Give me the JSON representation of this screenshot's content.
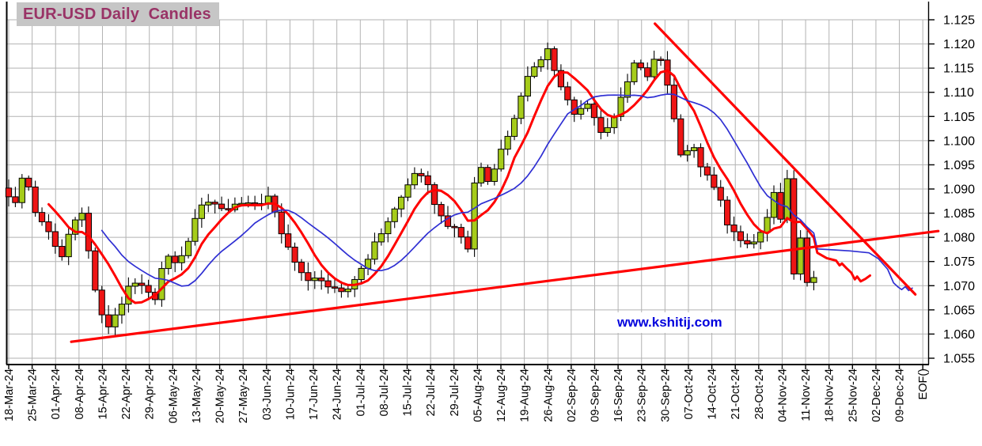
{
  "header": {
    "title": "EUR-USD Daily  Candles"
  },
  "watermark": {
    "text": "www.kshitij.com"
  },
  "colors": {
    "background": "#ffffff",
    "grid": "#b2b2b2",
    "axis": "#000000",
    "label_text": "#000000",
    "title_text": "#993366",
    "title_bg": "#c6c6c6",
    "watermark_text": "#0000dd",
    "candle_up": "#a6cc1a",
    "candle_down": "#ee1515",
    "ma_fast": "#ff0000",
    "ma_slow": "#2f2fd3",
    "trendline": "#ff0000"
  },
  "chart_data": {
    "type": "candlestick",
    "title": "EUR-USD Daily Candles",
    "instrument": "EUR-USD",
    "grid": true,
    "ylim": [
      1.055,
      1.125
    ],
    "y_step": 0.005,
    "y_tick_labels": [
      "1.125",
      "1.120",
      "1.115",
      "1.110",
      "1.105",
      "1.100",
      "1.095",
      "1.090",
      "1.085",
      "1.080",
      "1.075",
      "1.070",
      "1.065",
      "1.060",
      "1.055"
    ],
    "x_tick_labels": [
      "18-Mar-24",
      "25-Mar-24",
      "01-Apr-24",
      "08-Apr-24",
      "15-Apr-24",
      "22-Apr-24",
      "29-Apr-24",
      "06-May-24",
      "13-May-24",
      "20-May-24",
      "27-May-24",
      "03-Jun-24",
      "10-Jun-24",
      "17-Jun-24",
      "24-Jun-24",
      "01-Jul-24",
      "08-Jul-24",
      "15-Jul-24",
      "22-Jul-24",
      "29-Jul-24",
      "05-Aug-24",
      "12-Aug-24",
      "19-Aug-24",
      "26-Aug-24",
      "02-Sep-24",
      "09-Sep-24",
      "16-Sep-24",
      "23-Sep-24",
      "30-Sep-24",
      "07-Oct-24",
      "14-Oct-24",
      "21-Oct-24",
      "28-Oct-24",
      "04-Nov-24",
      "11-Nov-24",
      "18-Nov-24",
      "25-Nov-24",
      "02-Dec-24",
      "09-Dec-24",
      "EOF()"
    ],
    "num_candles": 122,
    "weeks_span": 34.35,
    "price_path_anchors": [
      [
        0,
        1.0888
      ],
      [
        0.28,
        1.0868
      ],
      [
        0.57,
        1.0922
      ],
      [
        0.85,
        1.0905
      ],
      [
        1.2,
        1.0843
      ],
      [
        1.9,
        1.0795
      ],
      [
        2.2,
        1.0748
      ],
      [
        2.75,
        1.0838
      ],
      [
        3.1,
        1.0855
      ],
      [
        3.5,
        1.0745
      ],
      [
        3.85,
        1.0648
      ],
      [
        4.2,
        1.0612
      ],
      [
        4.75,
        1.0658
      ],
      [
        5.25,
        1.0706
      ],
      [
        5.75,
        1.0694
      ],
      [
        6.2,
        1.0668
      ],
      [
        6.65,
        1.0758
      ],
      [
        7.3,
        1.0748
      ],
      [
        8.3,
        1.088
      ],
      [
        9.3,
        1.0856
      ],
      [
        9.9,
        1.0876
      ],
      [
        10.6,
        1.0862
      ],
      [
        11.1,
        1.089
      ],
      [
        11.65,
        1.0801
      ],
      [
        12.35,
        1.0742
      ],
      [
        12.7,
        1.0705
      ],
      [
        13.3,
        1.0718
      ],
      [
        13.7,
        1.0694
      ],
      [
        14.3,
        1.068
      ],
      [
        15.1,
        1.074
      ],
      [
        16.1,
        1.0828
      ],
      [
        16.6,
        1.0868
      ],
      [
        17.35,
        1.0938
      ],
      [
        17.9,
        1.0902
      ],
      [
        18.45,
        1.0842
      ],
      [
        19.31,
        1.08
      ],
      [
        19.59,
        1.0777
      ],
      [
        19.87,
        1.0911
      ],
      [
        20.15,
        1.0946
      ],
      [
        20.43,
        1.0915
      ],
      [
        21.3,
        1.1012
      ],
      [
        22.3,
        1.1148
      ],
      [
        23.0,
        1.119
      ],
      [
        23.45,
        1.112
      ],
      [
        24.2,
        1.1046
      ],
      [
        24.65,
        1.1086
      ],
      [
        25.3,
        1.1012
      ],
      [
        25.9,
        1.1058
      ],
      [
        26.35,
        1.1112
      ],
      [
        26.65,
        1.116
      ],
      [
        27.3,
        1.1132
      ],
      [
        27.7,
        1.1186
      ],
      [
        28.05,
        1.1132
      ],
      [
        28.65,
        1.0976
      ],
      [
        29.2,
        1.0985
      ],
      [
        29.65,
        1.0936
      ],
      [
        30.3,
        1.0885
      ],
      [
        30.65,
        1.0832
      ],
      [
        31.3,
        1.0782
      ],
      [
        31.8,
        1.079
      ],
      [
        32.25,
        1.082
      ],
      [
        32.64,
        1.0888
      ],
      [
        32.93,
        1.0836
      ],
      [
        33.21,
        1.0926
      ],
      [
        33.5,
        1.0722
      ],
      [
        33.78,
        1.0798
      ],
      [
        34.07,
        1.0706
      ],
      [
        34.35,
        1.0718
      ]
    ],
    "moving_averages": [
      {
        "name": "fast-red-ma",
        "period": 7,
        "color": "#ff0000",
        "width": 3,
        "extension": [
          [
            34.5,
            1.0768
          ],
          [
            34.9,
            1.0757
          ],
          [
            35.3,
            1.0752
          ],
          [
            35.45,
            1.0742
          ],
          [
            35.55,
            1.0746
          ],
          [
            35.75,
            1.0736
          ],
          [
            35.95,
            1.0727
          ],
          [
            36.1,
            1.0713
          ],
          [
            36.2,
            1.0719
          ],
          [
            36.35,
            1.0709
          ],
          [
            36.55,
            1.0714
          ],
          [
            36.75,
            1.0721
          ]
        ]
      },
      {
        "name": "slow-blue-ma",
        "period": 15,
        "color": "#2f2fd3",
        "width": 1.7,
        "extension": [
          [
            34.5,
            1.0776
          ],
          [
            35.2,
            1.0774
          ],
          [
            35.9,
            1.0772
          ],
          [
            36.7,
            1.0768
          ],
          [
            37.1,
            1.0756
          ],
          [
            37.5,
            1.0734
          ],
          [
            37.75,
            1.0706
          ],
          [
            37.95,
            1.0697
          ],
          [
            38.1,
            1.0692
          ],
          [
            38.25,
            1.0698
          ],
          [
            38.4,
            1.069
          ],
          [
            38.55,
            1.0695
          ]
        ]
      }
    ],
    "trendlines": [
      {
        "name": "ascending-support-line",
        "color": "#ff0000",
        "width": 3.2,
        "from": [
          2.67,
          1.0584
        ],
        "to": [
          39.66,
          1.0813
        ]
      },
      {
        "name": "descending-resistance-line",
        "color": "#ff0000",
        "width": 3.2,
        "from": [
          27.57,
          1.1242
        ],
        "to": [
          38.68,
          1.0682
        ]
      }
    ]
  }
}
